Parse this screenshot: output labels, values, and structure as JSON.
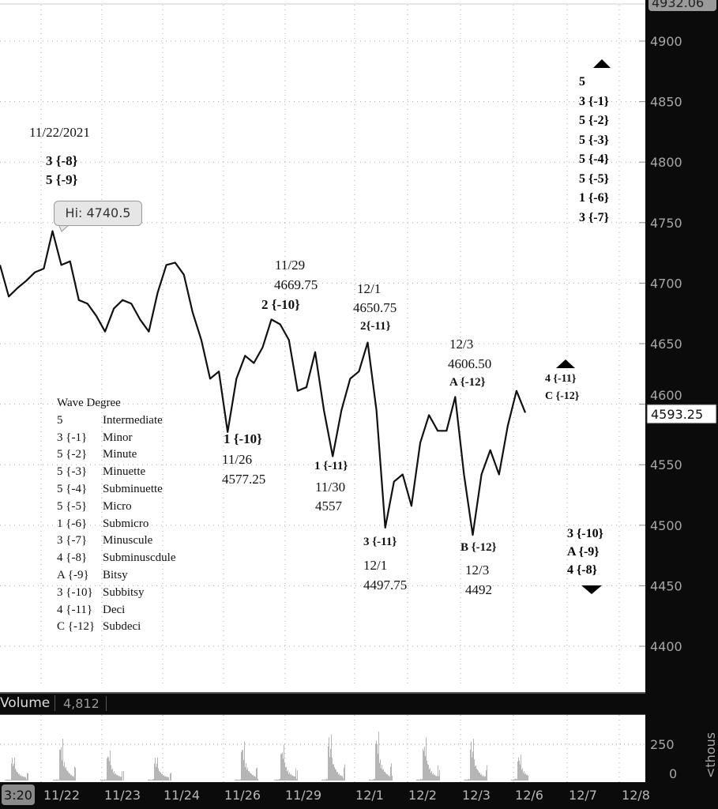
{
  "chart_data": {
    "type": "line",
    "title": "",
    "price_axis": {
      "ticks": [
        4400,
        4450,
        4500,
        4550,
        4600,
        4650,
        4700,
        4750,
        4800,
        4850,
        4900
      ],
      "top_value_label": "4932.06",
      "ylim": [
        4365,
        4935
      ]
    },
    "x_tick_labels": [
      "11/22",
      "11/23",
      "11/24",
      "11/26",
      "11/29",
      "12/1",
      "12/2",
      "12/3",
      "12/6",
      "12/7",
      "12/8"
    ],
    "cursor_time_label": "3:20",
    "price_series": [
      4715,
      4689,
      4696,
      4702,
      4709,
      4712,
      4743,
      4715,
      4718,
      4686,
      4683,
      4673,
      4660,
      4679,
      4686,
      4683,
      4670,
      4660,
      4692,
      4715,
      4717,
      4707,
      4676,
      4653,
      4621,
      4627,
      4577,
      4621,
      4640,
      4634,
      4647,
      4670,
      4666,
      4653,
      4611,
      4614,
      4643,
      4595,
      4557,
      4595,
      4621,
      4627,
      4651,
      4595,
      4498,
      4536,
      4542,
      4516,
      4568,
      4591,
      4578,
      4578,
      4606,
      4542,
      4492,
      4542,
      4562,
      4542,
      4582,
      4611,
      4593
    ],
    "last_price_label": "4593.25",
    "high_bubble": "Hi: 4740.5",
    "volume": {
      "title": "Volume",
      "value": "4,812",
      "axis_ticks": [
        "250",
        "0"
      ],
      "unit_label": "<thous",
      "session_peaks": [
        160,
        290,
        210,
        160,
        270,
        250,
        320,
        340,
        300,
        290,
        180
      ]
    },
    "annotations": {
      "date_top": "11/22/2021",
      "top_wave_1": "3 {-8}",
      "top_wave_2": "5 {-9}",
      "a1129_date": "11/29",
      "a1129_price": "4669.75",
      "a1129_wave": "2 {-10}",
      "a121_date": "12/1",
      "a121_price": "4650.75",
      "a121_wave": "2{-11}",
      "a123_date": "12/3",
      "a123_price": "4606.50",
      "a123_wave": "A {-12}",
      "low1126_wave": "1 {-10}",
      "low1126_date": "11/26",
      "low1126_price": "4577.25",
      "low1130_wave": "1 {-11}",
      "low1130_date": "11/30",
      "low1130_price": "4557",
      "low121_wave": "3 {-11}",
      "low121_date": "12/1",
      "low121_price": "4497.75",
      "low123_wave": "B {-12}",
      "low123_date": "12/3",
      "low123_price": "4492",
      "right_mid_1": "4 {-11}",
      "right_mid_2": "C {-12}",
      "right_top": [
        "5",
        "3 {-1}",
        "5 {-2}",
        "5 {-3}",
        "5 {-4}",
        "5 {-5}",
        "1 {-6}",
        "3 {-7}"
      ],
      "right_bottom": [
        "3 {-10}",
        "A {-9}",
        "4 {-8}"
      ]
    },
    "legend": {
      "title": "Wave Degree",
      "rows": [
        [
          "5",
          "Intermediate"
        ],
        [
          "3 {-1}",
          "Minor"
        ],
        [
          "5 {-2}",
          "Minute"
        ],
        [
          "5 {-3}",
          "Minuette"
        ],
        [
          "5 {-4}",
          "Subminuette"
        ],
        [
          "5 {-5}",
          "Micro"
        ],
        [
          "1 {-6}",
          "Submicro"
        ],
        [
          "3 {-7}",
          "Minuscule"
        ],
        [
          "4 {-8}",
          "Subminuscdule"
        ],
        [
          "A {-9}",
          "Bitsy"
        ],
        [
          "3 {-10}",
          "Subbitsy"
        ],
        [
          "4 {-11}",
          "Deci"
        ],
        [
          "C {-12}",
          "Subdeci"
        ]
      ]
    },
    "colors": {
      "price_line": "#111111",
      "volume_bars": "#b5b5b5",
      "axis_bg": "#0b0b0b",
      "axis_text": "#a7a7a7",
      "grid": "#aaaaaa"
    }
  }
}
